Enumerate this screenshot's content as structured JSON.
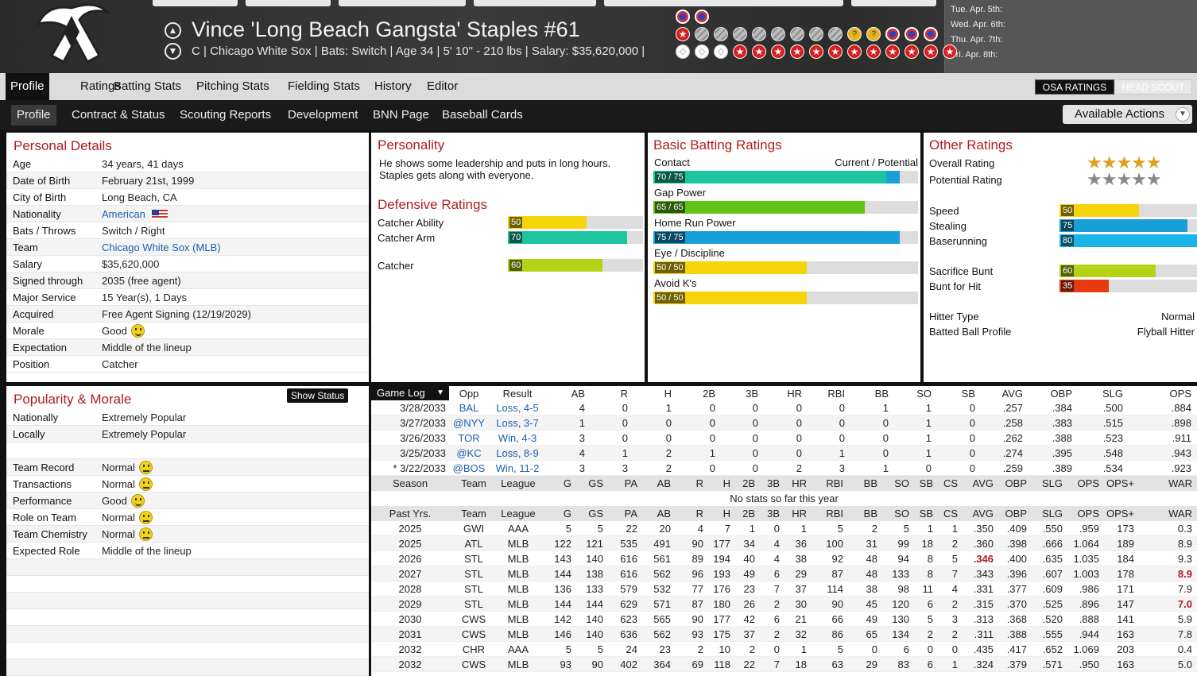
{
  "header": {
    "player_name": "Vince 'Long Beach Gangsta' Staples  #61",
    "player_info": "C | Chicago White Sox  |  Bats: Switch  |  Age 34  |  5' 10\" - 210 lbs  |  Salary: $35,620,000  |"
  },
  "schedule": [
    "Tue. Apr. 5th:",
    "Wed. Apr. 6th:",
    "Thu. Apr. 7th:",
    "Fri. Apr. 8th:"
  ],
  "nav1": [
    "Profile",
    "Ratings",
    "Batting Stats",
    "Pitching Stats",
    "Fielding Stats",
    "History",
    "Editor"
  ],
  "osa_label": "OSA RATINGS",
  "headscout_label": "HEAD SCOUT",
  "nav2": [
    "Profile",
    "Contract & Status",
    "Scouting Reports",
    "Development",
    "BNN Page",
    "Baseball Cards"
  ],
  "available_actions": "Available Actions",
  "personal": {
    "title": "Personal Details",
    "rows": [
      {
        "label": "Age",
        "value": "34 years, 41 days"
      },
      {
        "label": "Date of Birth",
        "value": "February 21st, 1999"
      },
      {
        "label": "City of Birth",
        "value": "Long Beach, CA"
      },
      {
        "label": "Nationality",
        "value": "American"
      },
      {
        "label": "Bats / Throws",
        "value": "Switch / Right"
      },
      {
        "label": "Team",
        "value": "Chicago White Sox (MLB)"
      },
      {
        "label": "Salary",
        "value": "$35,620,000"
      },
      {
        "label": "Signed through",
        "value": "2035 (free agent)"
      },
      {
        "label": "Major Service",
        "value": "15 Year(s), 1 Days"
      },
      {
        "label": "Acquired",
        "value": "Free Agent Signing (12/19/2029)"
      },
      {
        "label": "Morale",
        "value": "Good"
      },
      {
        "label": "Expectation",
        "value": "Middle of the lineup"
      },
      {
        "label": "Position",
        "value": "Catcher"
      }
    ]
  },
  "personality": {
    "title": "Personality",
    "text1": "He shows some leadership and puts in long hours.",
    "text2": "Staples gets along with everyone."
  },
  "defense": {
    "title": "Defensive Ratings",
    "rows": [
      {
        "label": "Catcher Ability",
        "value": 50,
        "pct": 0.58,
        "color": "#f5d40a"
      },
      {
        "label": "Catcher Arm",
        "value": 70,
        "pct": 0.88,
        "color": "#1cc4a0"
      },
      {
        "label": "Catcher",
        "value": 60,
        "pct": 0.7,
        "color": "#b5d216"
      }
    ]
  },
  "batting": {
    "title": "Basic Batting Ratings",
    "cp_label": "Current / Potential",
    "rows": [
      {
        "label": "Contact",
        "value": "70 / 75",
        "cur": 0.88,
        "pot": 0.93,
        "color": "#1cc4a0",
        "potcolor": "#1a9ed8"
      },
      {
        "label": "Gap Power",
        "value": "65 / 65",
        "cur": 0.8,
        "pot": 0.8,
        "color": "#5fc416",
        "potcolor": "#5fc416"
      },
      {
        "label": "Home Run Power",
        "value": "75 / 75",
        "cur": 0.93,
        "pot": 0.93,
        "color": "#1a9ed8",
        "potcolor": "#1a9ed8"
      },
      {
        "label": "Eye / Discipline",
        "value": "50 / 50",
        "cur": 0.58,
        "pot": 0.58,
        "color": "#f5d40a",
        "potcolor": "#f5d40a"
      },
      {
        "label": "Avoid K's",
        "value": "50 / 50",
        "cur": 0.58,
        "pot": 0.58,
        "color": "#f5d40a",
        "potcolor": "#f5d40a"
      }
    ]
  },
  "other": {
    "title": "Other Ratings",
    "overall_label": "Overall Rating",
    "potential_label": "Potential Rating",
    "overall_stars": 5,
    "potential_stars": 5,
    "rows": [
      {
        "label": "Speed",
        "value": 50,
        "pct": 0.58,
        "color": "#f5d40a"
      },
      {
        "label": "Stealing",
        "value": 75,
        "pct": 0.93,
        "color": "#1a9ed8"
      },
      {
        "label": "Baserunning",
        "value": 80,
        "pct": 1.0,
        "color": "#1ab4e8"
      },
      {
        "label": "Sacrifice Bunt",
        "value": 60,
        "pct": 0.7,
        "color": "#b5d216"
      },
      {
        "label": "Bunt for Hit",
        "value": 35,
        "pct": 0.36,
        "color": "#e83a10"
      }
    ],
    "hitter_type_label": "Hitter Type",
    "hitter_type": "Normal",
    "bb_profile_label": "Batted Ball Profile",
    "bb_profile": "Flyball Hitter"
  },
  "popularity": {
    "title": "Popularity & Morale",
    "show_status": "Show Status",
    "rows": [
      {
        "label": "Nationally",
        "value": "Extremely Popular",
        "mood": ""
      },
      {
        "label": "Locally",
        "value": "Extremely Popular",
        "mood": ""
      },
      {
        "label": "",
        "value": "",
        "mood": ""
      },
      {
        "label": "Team Record",
        "value": "Normal",
        "mood": "normal"
      },
      {
        "label": "Transactions",
        "value": "Normal",
        "mood": "normal"
      },
      {
        "label": "Performance",
        "value": "Good",
        "mood": "good"
      },
      {
        "label": "Role on Team",
        "value": "Normal",
        "mood": "normal"
      },
      {
        "label": "Team Chemistry",
        "value": "Normal",
        "mood": "normal"
      },
      {
        "label": "Expected Role",
        "value": "Middle of the lineup",
        "mood": ""
      }
    ]
  },
  "gamelog": {
    "select": "Game Log",
    "headers": [
      "Opp",
      "Result",
      "AB",
      "R",
      "H",
      "2B",
      "3B",
      "HR",
      "RBI",
      "BB",
      "SO",
      "SB",
      "AVG",
      "OBP",
      "SLG",
      "OPS"
    ],
    "rows": [
      [
        "3/28/2033",
        "BAL",
        "Loss, 4-5",
        "4",
        "0",
        "1",
        "0",
        "0",
        "0",
        "0",
        "1",
        "1",
        "0",
        ".257",
        ".384",
        ".500",
        ".884"
      ],
      [
        "3/27/2033",
        "@NYY",
        "Loss, 3-7",
        "1",
        "0",
        "0",
        "0",
        "0",
        "0",
        "0",
        "0",
        "1",
        "0",
        ".258",
        ".383",
        ".515",
        ".898"
      ],
      [
        "3/26/2033",
        "TOR",
        "Win, 4-3",
        "3",
        "0",
        "0",
        "0",
        "0",
        "0",
        "0",
        "0",
        "1",
        "0",
        ".262",
        ".388",
        ".523",
        ".911"
      ],
      [
        "3/25/2033",
        "@KC",
        "Loss, 8-9",
        "4",
        "1",
        "2",
        "1",
        "0",
        "0",
        "1",
        "0",
        "1",
        "0",
        ".274",
        ".395",
        ".548",
        ".943"
      ],
      [
        "* 3/22/2033",
        "@BOS",
        "Win, 11-2",
        "3",
        "3",
        "2",
        "0",
        "0",
        "2",
        "3",
        "1",
        "0",
        "0",
        ".259",
        ".389",
        ".534",
        ".923"
      ]
    ]
  },
  "season": {
    "headers": [
      "Season",
      "Team",
      "League",
      "G",
      "GS",
      "PA",
      "AB",
      "R",
      "H",
      "2B",
      "3B",
      "HR",
      "RBI",
      "BB",
      "SO",
      "SB",
      "CS",
      "AVG",
      "OBP",
      "SLG",
      "OPS",
      "OPS+",
      "WAR"
    ],
    "no_stats": "No stats so far this year"
  },
  "pastyrs": {
    "headers": [
      "Past Yrs.",
      "Team",
      "League",
      "G",
      "GS",
      "PA",
      "AB",
      "R",
      "H",
      "2B",
      "3B",
      "HR",
      "RBI",
      "BB",
      "SO",
      "SB",
      "CS",
      "AVG",
      "OBP",
      "SLG",
      "OPS",
      "OPS+",
      "WAR"
    ],
    "rows": [
      [
        "2025",
        "GWI",
        "AAA",
        "5",
        "5",
        "22",
        "20",
        "4",
        "7",
        "1",
        "0",
        "1",
        "5",
        "2",
        "5",
        "1",
        "1",
        ".350",
        ".409",
        ".550",
        ".959",
        "173",
        "0.3"
      ],
      [
        "2025",
        "ATL",
        "MLB",
        "122",
        "121",
        "535",
        "491",
        "90",
        "177",
        "34",
        "4",
        "36",
        "100",
        "31",
        "99",
        "18",
        "2",
        ".360",
        ".398",
        ".666",
        "1.064",
        "189",
        "8.9"
      ],
      [
        "2026",
        "STL",
        "MLB",
        "143",
        "140",
        "616",
        "561",
        "89",
        "194",
        "40",
        "4",
        "38",
        "92",
        "48",
        "94",
        "8",
        "5",
        ".346",
        ".400",
        ".635",
        "1.035",
        "184",
        "9.3"
      ],
      [
        "2027",
        "STL",
        "MLB",
        "144",
        "138",
        "616",
        "562",
        "96",
        "193",
        "49",
        "6",
        "29",
        "87",
        "48",
        "133",
        "8",
        "7",
        ".343",
        ".396",
        ".607",
        "1.003",
        "178",
        "8.9"
      ],
      [
        "2028",
        "STL",
        "MLB",
        "136",
        "133",
        "579",
        "532",
        "77",
        "176",
        "23",
        "7",
        "37",
        "114",
        "38",
        "98",
        "11",
        "4",
        ".331",
        ".377",
        ".609",
        ".986",
        "171",
        "7.9"
      ],
      [
        "2029",
        "STL",
        "MLB",
        "144",
        "144",
        "629",
        "571",
        "87",
        "180",
        "26",
        "2",
        "30",
        "90",
        "45",
        "120",
        "6",
        "2",
        ".315",
        ".370",
        ".525",
        ".896",
        "147",
        "7.0"
      ],
      [
        "2030",
        "CWS",
        "MLB",
        "142",
        "140",
        "623",
        "565",
        "90",
        "177",
        "42",
        "6",
        "21",
        "66",
        "49",
        "130",
        "5",
        "3",
        ".313",
        ".368",
        ".520",
        ".888",
        "141",
        "5.9"
      ],
      [
        "2031",
        "CWS",
        "MLB",
        "146",
        "140",
        "636",
        "562",
        "93",
        "175",
        "37",
        "2",
        "32",
        "86",
        "65",
        "134",
        "2",
        "2",
        ".311",
        ".388",
        ".555",
        ".944",
        "163",
        "7.8"
      ],
      [
        "2032",
        "CHR",
        "AAA",
        "5",
        "5",
        "24",
        "23",
        "2",
        "10",
        "2",
        "0",
        "1",
        "5",
        "0",
        "6",
        "0",
        "0",
        ".435",
        ".417",
        ".652",
        "1.069",
        "203",
        "0.4"
      ],
      [
        "2032",
        "CWS",
        "MLB",
        "93",
        "90",
        "402",
        "364",
        "69",
        "118",
        "22",
        "7",
        "18",
        "63",
        "29",
        "83",
        "6",
        "1",
        ".324",
        ".379",
        ".571",
        ".950",
        "163",
        "5.0"
      ]
    ],
    "red_cells": [
      [
        2,
        17
      ],
      [
        3,
        22
      ],
      [
        5,
        22
      ]
    ]
  }
}
